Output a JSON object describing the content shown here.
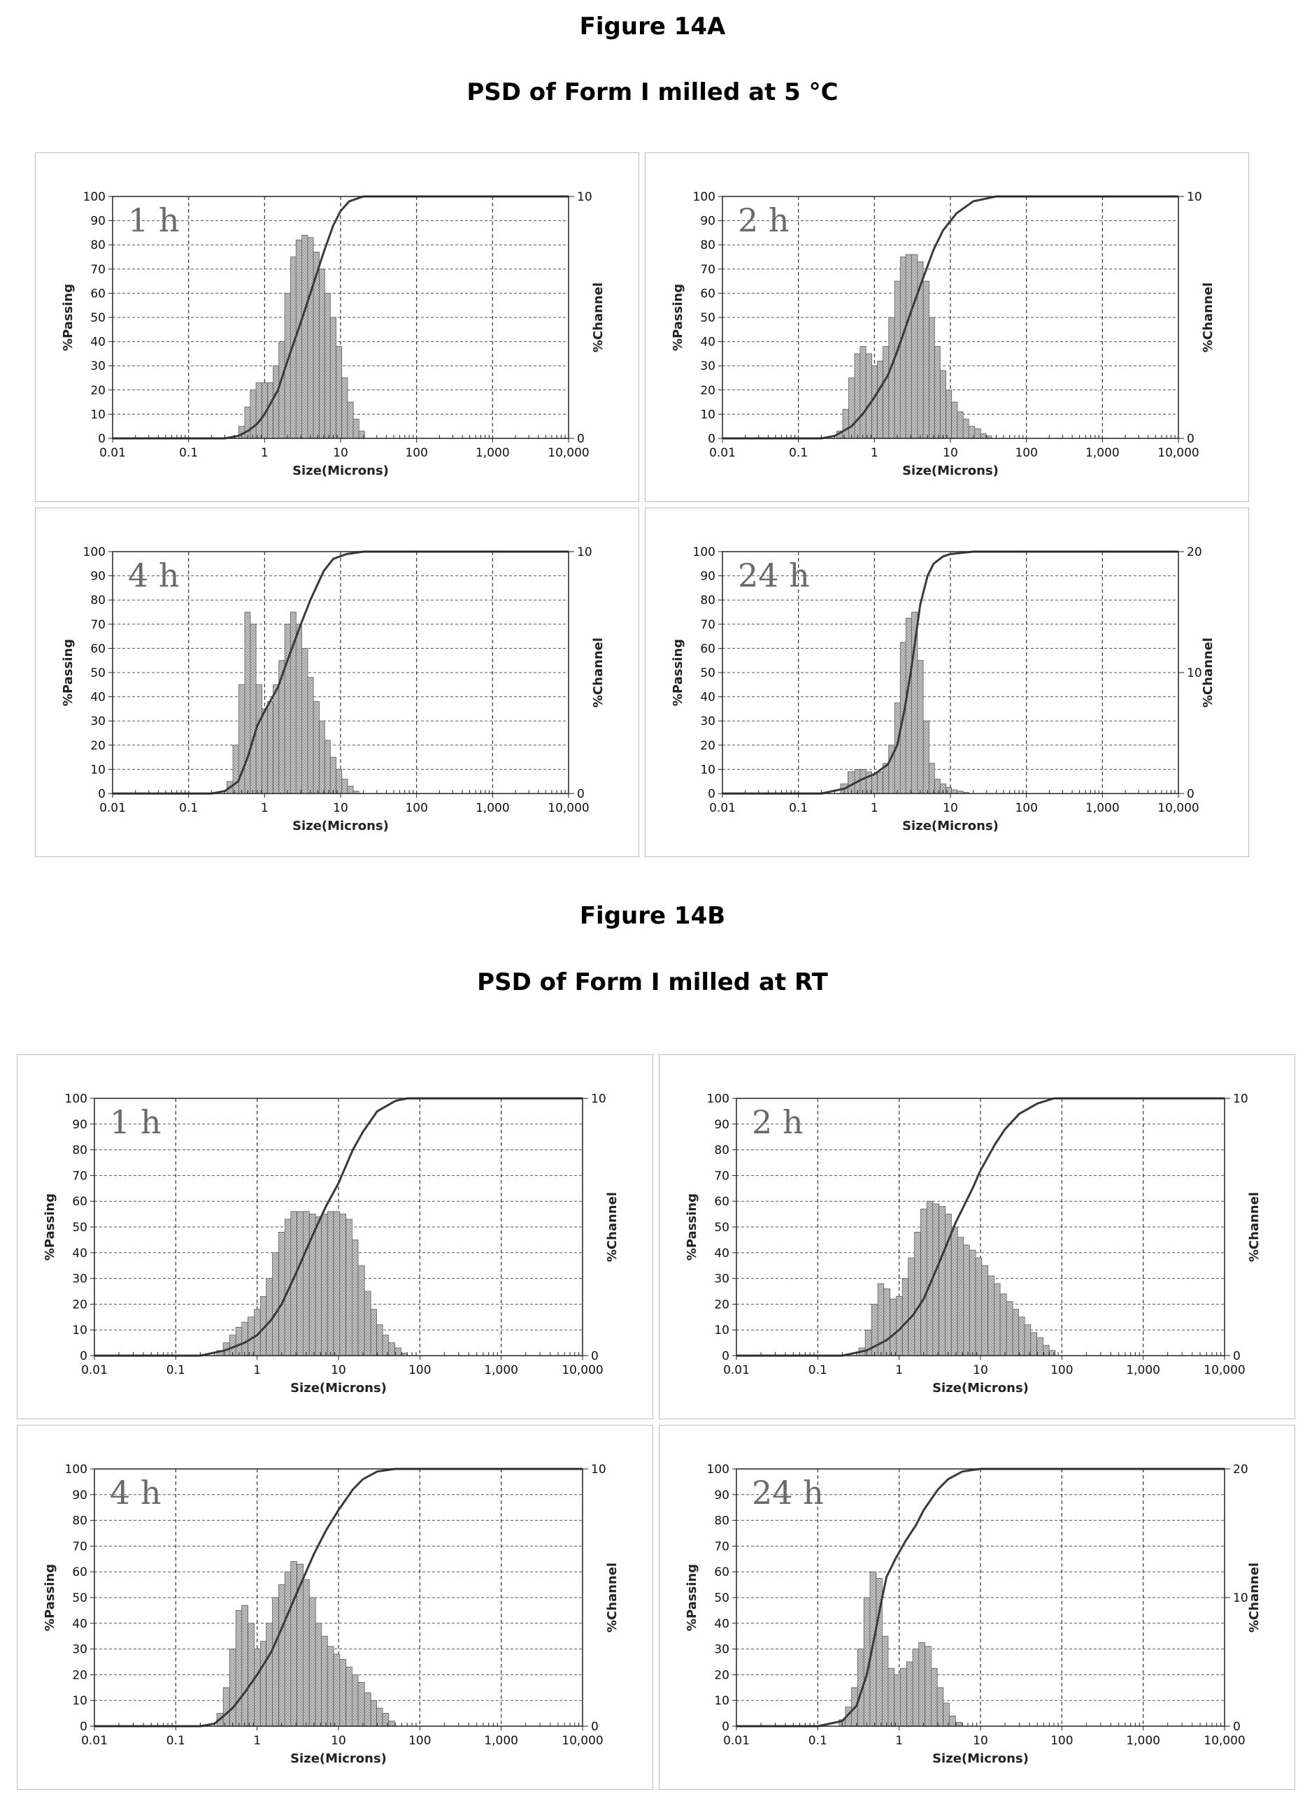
{
  "figure_a": {
    "title": "Figure 14A",
    "subtitle": "PSD of Form I milled at 5 °C"
  },
  "figure_b": {
    "title": "Figure 14B",
    "subtitle": "PSD of Form I milled at RT"
  },
  "chart_data": [
    {
      "type": "bar",
      "figure": "Figure 14A",
      "label": "1 h",
      "xlabel": "Size(Microns)",
      "ylabel_left": "%Passing",
      "ylabel_right": "%Channel",
      "x_scale": "log",
      "xlim": [
        0.01,
        10000
      ],
      "x_ticks": [
        "0.01",
        "0.1",
        "1",
        "10",
        "100",
        "1,000",
        "10,000"
      ],
      "ylim_left": [
        0,
        100
      ],
      "ylim_right": [
        0,
        10
      ],
      "right_ticks": [
        "10",
        "0"
      ],
      "grid": true,
      "histogram_sizes_um": [
        0.5,
        0.6,
        0.7,
        0.85,
        1.0,
        1.2,
        1.4,
        1.7,
        2.0,
        2.4,
        2.8,
        3.4,
        4.0,
        4.8,
        5.7,
        6.7,
        8.0,
        9.5,
        11.3,
        13.5,
        16.0,
        19.0
      ],
      "channel_percent": [
        0.5,
        1.3,
        2.0,
        2.3,
        2.3,
        2.3,
        3.0,
        4.0,
        6.0,
        7.5,
        8.2,
        8.4,
        8.3,
        7.7,
        7.0,
        6.0,
        5.0,
        3.8,
        2.5,
        1.5,
        0.8,
        0.3
      ],
      "cumulative_passing": [
        [
          0.01,
          0
        ],
        [
          0.3,
          0
        ],
        [
          0.45,
          1
        ],
        [
          0.6,
          3
        ],
        [
          0.8,
          6
        ],
        [
          1.0,
          10
        ],
        [
          1.5,
          20
        ],
        [
          2.0,
          32
        ],
        [
          3.0,
          48
        ],
        [
          4.0,
          60
        ],
        [
          6.0,
          77
        ],
        [
          8.0,
          88
        ],
        [
          10.0,
          94
        ],
        [
          13.0,
          98
        ],
        [
          20.0,
          100
        ],
        [
          10000,
          100
        ]
      ]
    },
    {
      "type": "bar",
      "figure": "Figure 14A",
      "label": "2 h",
      "xlabel": "Size(Microns)",
      "ylabel_left": "%Passing",
      "ylabel_right": "%Channel",
      "x_scale": "log",
      "xlim": [
        0.01,
        10000
      ],
      "x_ticks": [
        "0.01",
        "0.1",
        "1",
        "10",
        "100",
        "1,000",
        "10,000"
      ],
      "ylim_left": [
        0,
        100
      ],
      "ylim_right": [
        0,
        10
      ],
      "right_ticks": [
        "10",
        "0"
      ],
      "grid": true,
      "histogram_sizes_um": [
        0.35,
        0.42,
        0.5,
        0.6,
        0.7,
        0.85,
        1.0,
        1.2,
        1.4,
        1.7,
        2.0,
        2.4,
        2.8,
        3.4,
        4.0,
        4.8,
        5.7,
        6.7,
        8.0,
        9.5,
        11.3,
        13.5,
        16.0,
        19.0,
        23.0,
        27.0,
        32.0
      ],
      "channel_percent": [
        0.3,
        1.2,
        2.5,
        3.5,
        3.8,
        3.5,
        3.0,
        3.2,
        3.8,
        5.0,
        6.5,
        7.5,
        7.6,
        7.6,
        7.3,
        6.5,
        5.0,
        3.8,
        2.8,
        2.0,
        1.5,
        1.1,
        0.8,
        0.5,
        0.4,
        0.2,
        0.1
      ],
      "cumulative_passing": [
        [
          0.01,
          0
        ],
        [
          0.2,
          0
        ],
        [
          0.3,
          1
        ],
        [
          0.5,
          5
        ],
        [
          0.7,
          10
        ],
        [
          1.0,
          17
        ],
        [
          1.5,
          26
        ],
        [
          2.0,
          36
        ],
        [
          3.0,
          52
        ],
        [
          4.0,
          63
        ],
        [
          6.0,
          78
        ],
        [
          8.0,
          86
        ],
        [
          12.0,
          93
        ],
        [
          20.0,
          98
        ],
        [
          40.0,
          100
        ],
        [
          10000,
          100
        ]
      ]
    },
    {
      "type": "bar",
      "figure": "Figure 14A",
      "label": "4 h",
      "xlabel": "Size(Microns)",
      "ylabel_left": "%Passing",
      "ylabel_right": "%Channel",
      "x_scale": "log",
      "xlim": [
        0.01,
        10000
      ],
      "x_ticks": [
        "0.01",
        "0.1",
        "1",
        "10",
        "100",
        "1,000",
        "10,000"
      ],
      "ylim_left": [
        0,
        100
      ],
      "ylim_right": [
        0,
        10
      ],
      "right_ticks": [
        "10",
        "0"
      ],
      "grid": true,
      "histogram_sizes_um": [
        0.35,
        0.42,
        0.5,
        0.6,
        0.7,
        0.85,
        1.0,
        1.2,
        1.4,
        1.7,
        2.0,
        2.4,
        2.8,
        3.4,
        4.0,
        4.8,
        5.7,
        6.7,
        8.0,
        9.5,
        11.3,
        13.5,
        16.0
      ],
      "channel_percent": [
        0.5,
        2.0,
        4.5,
        7.5,
        7.0,
        4.5,
        3.5,
        3.8,
        4.5,
        5.5,
        7.0,
        7.5,
        7.0,
        6.0,
        4.8,
        3.8,
        3.0,
        2.2,
        1.5,
        1.0,
        0.6,
        0.3,
        0.1
      ],
      "cumulative_passing": [
        [
          0.01,
          0
        ],
        [
          0.2,
          0
        ],
        [
          0.3,
          1
        ],
        [
          0.45,
          5
        ],
        [
          0.6,
          15
        ],
        [
          0.8,
          28
        ],
        [
          1.0,
          34
        ],
        [
          1.5,
          44
        ],
        [
          2.0,
          55
        ],
        [
          3.0,
          70
        ],
        [
          4.0,
          80
        ],
        [
          6.0,
          92
        ],
        [
          8.0,
          97
        ],
        [
          12.0,
          99
        ],
        [
          20.0,
          100
        ],
        [
          10000,
          100
        ]
      ]
    },
    {
      "type": "bar",
      "figure": "Figure 14A",
      "label": "24 h",
      "xlabel": "Size(Microns)",
      "ylabel_left": "%Passing",
      "ylabel_right": "%Channel",
      "x_scale": "log",
      "xlim": [
        0.01,
        10000
      ],
      "x_ticks": [
        "0.01",
        "0.1",
        "1",
        "10",
        "100",
        "1,000",
        "10,000"
      ],
      "ylim_left": [
        0,
        100
      ],
      "ylim_right": [
        0,
        20
      ],
      "right_ticks": [
        "20",
        "10",
        "0"
      ],
      "grid": true,
      "histogram_sizes_um": [
        0.4,
        0.5,
        0.6,
        0.7,
        0.85,
        1.0,
        1.2,
        1.4,
        1.7,
        2.0,
        2.4,
        2.8,
        3.4,
        4.0,
        4.8,
        5.7,
        6.7,
        8.0,
        9.5,
        11.3,
        13.5,
        16.0
      ],
      "channel_percent": [
        0.8,
        1.8,
        2.0,
        2.0,
        1.8,
        1.6,
        1.8,
        2.5,
        4.0,
        7.5,
        12.5,
        14.5,
        15.0,
        11.0,
        6.0,
        2.5,
        1.2,
        0.8,
        0.5,
        0.3,
        0.2,
        0.1
      ],
      "cumulative_passing": [
        [
          0.01,
          0
        ],
        [
          0.2,
          0
        ],
        [
          0.4,
          2
        ],
        [
          0.7,
          6
        ],
        [
          1.0,
          8
        ],
        [
          1.5,
          12
        ],
        [
          2.0,
          20
        ],
        [
          2.5,
          35
        ],
        [
          3.0,
          50
        ],
        [
          3.5,
          65
        ],
        [
          4.0,
          78
        ],
        [
          5.0,
          90
        ],
        [
          6.0,
          95
        ],
        [
          8.0,
          98
        ],
        [
          10.0,
          99
        ],
        [
          20.0,
          100
        ],
        [
          10000,
          100
        ]
      ]
    },
    {
      "type": "bar",
      "figure": "Figure 14B",
      "label": "1 h",
      "xlabel": "Size(Microns)",
      "ylabel_left": "%Passing",
      "ylabel_right": "%Channel",
      "x_scale": "log",
      "xlim": [
        0.01,
        10000
      ],
      "x_ticks": [
        "0.01",
        "0.1",
        "1",
        "10",
        "100",
        "1,000",
        "10,000"
      ],
      "ylim_left": [
        0,
        100
      ],
      "ylim_right": [
        0,
        10
      ],
      "right_ticks": [
        "10",
        "0"
      ],
      "grid": true,
      "histogram_sizes_um": [
        0.35,
        0.42,
        0.5,
        0.6,
        0.7,
        0.85,
        1.0,
        1.2,
        1.4,
        1.7,
        2.0,
        2.4,
        2.8,
        3.4,
        4.0,
        4.8,
        5.7,
        6.7,
        8.0,
        9.5,
        11.3,
        13.5,
        16.0,
        19.0,
        23.0,
        27.0,
        32.0,
        38.0,
        45.0,
        54.0,
        64.0
      ],
      "channel_percent": [
        0.2,
        0.5,
        0.8,
        1.1,
        1.3,
        1.5,
        1.8,
        2.3,
        3.0,
        4.0,
        4.8,
        5.3,
        5.6,
        5.6,
        5.6,
        5.5,
        5.4,
        5.5,
        5.6,
        5.6,
        5.5,
        5.3,
        4.5,
        3.5,
        2.5,
        1.8,
        1.2,
        0.8,
        0.5,
        0.3,
        0.1
      ],
      "cumulative_passing": [
        [
          0.01,
          0
        ],
        [
          0.2,
          0
        ],
        [
          0.4,
          2
        ],
        [
          0.7,
          5
        ],
        [
          1.0,
          8
        ],
        [
          1.5,
          14
        ],
        [
          2.0,
          20
        ],
        [
          3.0,
          32
        ],
        [
          5.0,
          48
        ],
        [
          7.0,
          58
        ],
        [
          10.0,
          67
        ],
        [
          15.0,
          80
        ],
        [
          20.0,
          87
        ],
        [
          30.0,
          95
        ],
        [
          50.0,
          99
        ],
        [
          70.0,
          100
        ],
        [
          10000,
          100
        ]
      ]
    },
    {
      "type": "bar",
      "figure": "Figure 14B",
      "label": "2 h",
      "xlabel": "Size(Microns)",
      "ylabel_left": "%Passing",
      "ylabel_right": "%Channel",
      "x_scale": "log",
      "xlim": [
        0.01,
        10000
      ],
      "x_ticks": [
        "0.01",
        "0.1",
        "1",
        "10",
        "100",
        "1,000",
        "10,000"
      ],
      "ylim_left": [
        0,
        100
      ],
      "ylim_right": [
        0,
        10
      ],
      "right_ticks": [
        "10",
        "0"
      ],
      "grid": true,
      "histogram_sizes_um": [
        0.35,
        0.42,
        0.5,
        0.6,
        0.7,
        0.85,
        1.0,
        1.2,
        1.4,
        1.7,
        2.0,
        2.4,
        2.8,
        3.4,
        4.0,
        4.8,
        5.7,
        6.7,
        8.0,
        9.5,
        11.3,
        13.5,
        16.0,
        19.0,
        23.0,
        27.0,
        32.0,
        38.0,
        45.0,
        54.0,
        64.0,
        76.0
      ],
      "channel_percent": [
        0.3,
        1.0,
        2.0,
        2.8,
        2.6,
        2.2,
        2.3,
        3.0,
        3.8,
        4.8,
        5.7,
        6.0,
        5.9,
        5.8,
        5.5,
        5.0,
        4.6,
        4.3,
        4.1,
        3.8,
        3.5,
        3.1,
        2.8,
        2.4,
        2.1,
        1.8,
        1.5,
        1.2,
        0.9,
        0.7,
        0.4,
        0.2
      ],
      "cumulative_passing": [
        [
          0.01,
          0
        ],
        [
          0.2,
          0
        ],
        [
          0.4,
          2
        ],
        [
          0.7,
          6
        ],
        [
          1.0,
          10
        ],
        [
          1.5,
          16
        ],
        [
          2.0,
          22
        ],
        [
          3.0,
          35
        ],
        [
          5.0,
          52
        ],
        [
          8.0,
          65
        ],
        [
          10.0,
          72
        ],
        [
          15.0,
          82
        ],
        [
          20.0,
          88
        ],
        [
          30.0,
          94
        ],
        [
          50.0,
          98
        ],
        [
          80.0,
          100
        ],
        [
          10000,
          100
        ]
      ]
    },
    {
      "type": "bar",
      "figure": "Figure 14B",
      "label": "4 h",
      "xlabel": "Size(Microns)",
      "ylabel_left": "%Passing",
      "ylabel_right": "%Channel",
      "x_scale": "log",
      "xlim": [
        0.01,
        10000
      ],
      "x_ticks": [
        "0.01",
        "0.1",
        "1",
        "10",
        "100",
        "1,000",
        "10,000"
      ],
      "ylim_left": [
        0,
        100
      ],
      "ylim_right": [
        0,
        10
      ],
      "right_ticks": [
        "10",
        "0"
      ],
      "grid": true,
      "histogram_sizes_um": [
        0.35,
        0.42,
        0.5,
        0.6,
        0.7,
        0.85,
        1.0,
        1.2,
        1.4,
        1.7,
        2.0,
        2.4,
        2.8,
        3.4,
        4.0,
        4.8,
        5.7,
        6.7,
        8.0,
        9.5,
        11.3,
        13.5,
        16.0,
        19.0,
        23.0,
        27.0,
        32.0,
        38.0,
        45.0
      ],
      "channel_percent": [
        0.5,
        1.5,
        3.0,
        4.5,
        4.7,
        4.0,
        3.0,
        3.3,
        4.0,
        5.0,
        5.5,
        6.0,
        6.4,
        6.3,
        5.7,
        5.0,
        4.0,
        3.5,
        3.1,
        2.8,
        2.6,
        2.3,
        2.0,
        1.7,
        1.3,
        1.0,
        0.7,
        0.5,
        0.2
      ],
      "cumulative_passing": [
        [
          0.01,
          0
        ],
        [
          0.2,
          0
        ],
        [
          0.3,
          1
        ],
        [
          0.5,
          7
        ],
        [
          0.7,
          13
        ],
        [
          1.0,
          20
        ],
        [
          1.5,
          29
        ],
        [
          2.0,
          38
        ],
        [
          3.0,
          51
        ],
        [
          4.0,
          60
        ],
        [
          5.0,
          67
        ],
        [
          7.0,
          76
        ],
        [
          10.0,
          84
        ],
        [
          15.0,
          92
        ],
        [
          20.0,
          96
        ],
        [
          30.0,
          99
        ],
        [
          50.0,
          100
        ],
        [
          10000,
          100
        ]
      ]
    },
    {
      "type": "bar",
      "figure": "Figure 14B",
      "label": "24 h",
      "xlabel": "Size(Microns)",
      "ylabel_left": "%Passing",
      "ylabel_right": "%Channel",
      "x_scale": "log",
      "xlim": [
        0.01,
        10000
      ],
      "x_ticks": [
        "0.01",
        "0.1",
        "1",
        "10",
        "100",
        "1,000",
        "10,000"
      ],
      "ylim_left": [
        0,
        100
      ],
      "ylim_right": [
        0,
        20
      ],
      "right_ticks": [
        "20",
        "10",
        "0"
      ],
      "grid": true,
      "histogram_sizes_um": [
        0.2,
        0.24,
        0.28,
        0.34,
        0.4,
        0.48,
        0.57,
        0.67,
        0.8,
        0.95,
        1.13,
        1.35,
        1.6,
        1.9,
        2.26,
        2.7,
        3.2,
        3.8,
        4.5,
        5.4
      ],
      "channel_percent": [
        0.5,
        1.5,
        3.0,
        6.0,
        10.0,
        12.0,
        11.5,
        7.0,
        4.5,
        4.0,
        4.5,
        5.0,
        6.0,
        6.5,
        6.2,
        4.5,
        3.0,
        1.8,
        0.8,
        0.3
      ],
      "cumulative_passing": [
        [
          0.01,
          0
        ],
        [
          0.1,
          0
        ],
        [
          0.2,
          2
        ],
        [
          0.3,
          8
        ],
        [
          0.4,
          20
        ],
        [
          0.5,
          35
        ],
        [
          0.6,
          48
        ],
        [
          0.7,
          58
        ],
        [
          0.9,
          65
        ],
        [
          1.2,
          72
        ],
        [
          1.6,
          78
        ],
        [
          2.0,
          84
        ],
        [
          3.0,
          92
        ],
        [
          4.0,
          96
        ],
        [
          6.0,
          99
        ],
        [
          10.0,
          100
        ],
        [
          10000,
          100
        ]
      ]
    }
  ]
}
